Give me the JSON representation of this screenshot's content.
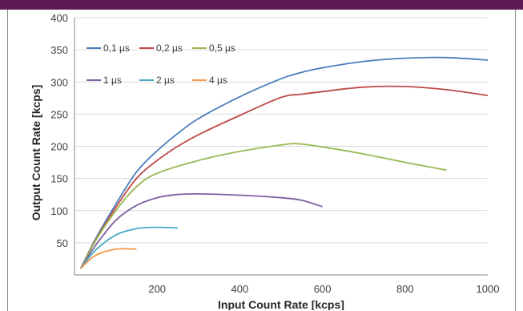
{
  "chart_data": {
    "type": "line",
    "title": "",
    "xlabel": "Input Count Rate [kcps]",
    "ylabel": "Output Count Rate [kcps]",
    "xlim": [
      0,
      1000
    ],
    "ylim": [
      0,
      400
    ],
    "x_ticks": [
      200,
      400,
      600,
      800,
      1000
    ],
    "y_ticks": [
      50,
      100,
      150,
      200,
      250,
      300,
      350,
      400
    ],
    "grid": "horizontal",
    "legend": "top-left",
    "series": [
      {
        "name": "0,1 µs",
        "color": "#4a7ebb",
        "x": [
          15,
          50,
          100,
          150,
          200,
          250,
          300,
          400,
          500,
          550,
          600,
          700,
          800,
          900,
          1000
        ],
        "y": [
          10,
          55,
          110,
          160,
          193,
          220,
          243,
          277,
          305,
          315,
          322,
          332,
          337,
          338,
          334
        ]
      },
      {
        "name": "0,2 µs",
        "color": "#be4b48",
        "x": [
          15,
          50,
          100,
          150,
          200,
          250,
          300,
          400,
          500,
          550,
          600,
          700,
          800,
          900,
          1000
        ],
        "y": [
          10,
          53,
          105,
          150,
          178,
          200,
          218,
          248,
          276,
          281,
          285,
          292,
          293,
          288,
          279
        ]
      },
      {
        "name": "0,5 µs",
        "color": "#98b954",
        "x": [
          15,
          50,
          100,
          150,
          200,
          300,
          400,
          500,
          540,
          600,
          700,
          800,
          900
        ],
        "y": [
          10,
          52,
          100,
          137,
          158,
          178,
          192,
          202,
          204,
          199,
          188,
          175,
          163
        ]
      },
      {
        "name": "1 µs",
        "color": "#7d60a0",
        "x": [
          15,
          50,
          100,
          150,
          200,
          250,
          300,
          400,
          500,
          550,
          600
        ],
        "y": [
          10,
          45,
          85,
          108,
          120,
          125,
          126,
          124,
          120,
          116,
          106
        ]
      },
      {
        "name": "2 µs",
        "color": "#46aac5",
        "x": [
          15,
          50,
          100,
          150,
          200,
          250
        ],
        "y": [
          10,
          38,
          62,
          72,
          74,
          73
        ]
      },
      {
        "name": "4 µs",
        "color": "#f79646",
        "x": [
          15,
          50,
          100,
          150
        ],
        "y": [
          10,
          30,
          40,
          40
        ]
      }
    ]
  }
}
